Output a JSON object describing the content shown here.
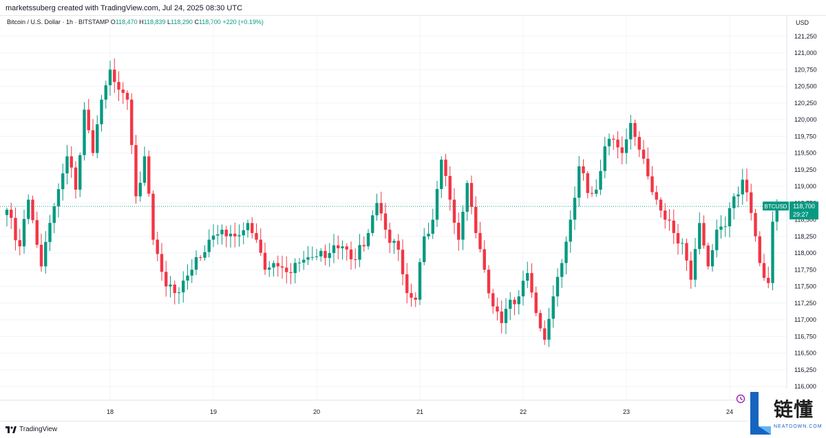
{
  "header": {
    "created_text": "marketssuberg created with TradingView.com, Jul 24, 2025 08:30 UTC"
  },
  "legend": {
    "symbol": "Bitcoin / U.S. Dollar · 1h · BITSTAMP",
    "o_label": "O",
    "o_value": "118,470",
    "h_label": "H",
    "h_value": "118,839",
    "l_label": "L",
    "l_value": "118,290",
    "c_label": "C",
    "c_value": "118,700",
    "change": "+220 (+0.19%)"
  },
  "footer": {
    "logo_text": "TradingView"
  },
  "watermark": {
    "cn": "链懂",
    "en": "NEATDOWN.COM"
  },
  "colors": {
    "up": "#089981",
    "down": "#f23645",
    "grid": "#f0f3fa",
    "axis_text": "#131722",
    "badge_bg": "#089981"
  },
  "chart_data": {
    "type": "candlestick",
    "title": "Bitcoin / U.S. Dollar · 1h · BITSTAMP",
    "currency_label": "USD",
    "ylim": [
      115750,
      121500
    ],
    "y_ticks": [
      116000,
      116250,
      116500,
      116750,
      117000,
      117250,
      117500,
      117750,
      118000,
      118250,
      118500,
      118750,
      119000,
      119250,
      119500,
      119750,
      120000,
      120250,
      120500,
      120750,
      121000,
      121250
    ],
    "y_tick_labels": [
      "116,000",
      "116,250",
      "116,500",
      "116,750",
      "117,000",
      "117,250",
      "117,500",
      "117,750",
      "118,000",
      "118,250",
      "118,500",
      "118,750",
      "119,000",
      "119,250",
      "119,500",
      "119,750",
      "120,000",
      "120,250",
      "120,500",
      "120,750",
      "121,000",
      "121,250"
    ],
    "x_ticks": [
      {
        "index": 24,
        "label": "18"
      },
      {
        "index": 48,
        "label": "19"
      },
      {
        "index": 72,
        "label": "20"
      },
      {
        "index": 96,
        "label": "21"
      },
      {
        "index": 120,
        "label": "22"
      },
      {
        "index": 144,
        "label": "23"
      },
      {
        "index": 168,
        "label": "24"
      }
    ],
    "last_price": {
      "symbol": "BTCUSD",
      "price": 118700,
      "price_label": "118,700",
      "countdown": "29:27"
    },
    "anchors": [
      {
        "i": 0,
        "c": 118650
      },
      {
        "i": 3,
        "c": 118100
      },
      {
        "i": 5,
        "c": 118800
      },
      {
        "i": 8,
        "c": 117800
      },
      {
        "i": 11,
        "c": 118700
      },
      {
        "i": 14,
        "c": 119450
      },
      {
        "i": 16,
        "c": 118950
      },
      {
        "i": 18,
        "c": 120150
      },
      {
        "i": 20,
        "c": 119500
      },
      {
        "i": 22,
        "c": 120300
      },
      {
        "i": 24,
        "c": 120750
      },
      {
        "i": 26,
        "c": 120450
      },
      {
        "i": 28,
        "c": 120300
      },
      {
        "i": 30,
        "c": 118850
      },
      {
        "i": 32,
        "c": 119450
      },
      {
        "i": 34,
        "c": 118200
      },
      {
        "i": 37,
        "c": 117500
      },
      {
        "i": 39,
        "c": 117400
      },
      {
        "i": 43,
        "c": 117750
      },
      {
        "i": 47,
        "c": 118200
      },
      {
        "i": 50,
        "c": 118350
      },
      {
        "i": 53,
        "c": 118250
      },
      {
        "i": 56,
        "c": 118450
      },
      {
        "i": 58,
        "c": 118200
      },
      {
        "i": 60,
        "c": 117750
      },
      {
        "i": 63,
        "c": 117800
      },
      {
        "i": 66,
        "c": 117700
      },
      {
        "i": 69,
        "c": 117900
      },
      {
        "i": 72,
        "c": 117950
      },
      {
        "i": 75,
        "c": 118000
      },
      {
        "i": 78,
        "c": 118100
      },
      {
        "i": 81,
        "c": 117900
      },
      {
        "i": 84,
        "c": 118300
      },
      {
        "i": 86,
        "c": 118750
      },
      {
        "i": 88,
        "c": 118350
      },
      {
        "i": 91,
        "c": 118050
      },
      {
        "i": 93,
        "c": 117400
      },
      {
        "i": 95,
        "c": 117300
      },
      {
        "i": 97,
        "c": 118250
      },
      {
        "i": 99,
        "c": 118500
      },
      {
        "i": 101,
        "c": 119400
      },
      {
        "i": 103,
        "c": 118800
      },
      {
        "i": 105,
        "c": 118200
      },
      {
        "i": 107,
        "c": 119050
      },
      {
        "i": 109,
        "c": 118300
      },
      {
        "i": 111,
        "c": 117750
      },
      {
        "i": 113,
        "c": 117200
      },
      {
        "i": 115,
        "c": 116950
      },
      {
        "i": 117,
        "c": 117300
      },
      {
        "i": 119,
        "c": 117350
      },
      {
        "i": 121,
        "c": 117700
      },
      {
        "i": 123,
        "c": 117100
      },
      {
        "i": 125,
        "c": 116700
      },
      {
        "i": 127,
        "c": 117350
      },
      {
        "i": 129,
        "c": 117850
      },
      {
        "i": 131,
        "c": 118500
      },
      {
        "i": 133,
        "c": 119300
      },
      {
        "i": 135,
        "c": 118900
      },
      {
        "i": 137,
        "c": 118950
      },
      {
        "i": 139,
        "c": 119600
      },
      {
        "i": 141,
        "c": 119700
      },
      {
        "i": 143,
        "c": 119500
      },
      {
        "i": 145,
        "c": 119950
      },
      {
        "i": 147,
        "c": 119550
      },
      {
        "i": 149,
        "c": 119150
      },
      {
        "i": 151,
        "c": 118800
      },
      {
        "i": 153,
        "c": 118500
      },
      {
        "i": 155,
        "c": 118300
      },
      {
        "i": 157,
        "c": 118150
      },
      {
        "i": 159,
        "c": 117600
      },
      {
        "i": 161,
        "c": 118450
      },
      {
        "i": 163,
        "c": 117800
      },
      {
        "i": 165,
        "c": 118350
      },
      {
        "i": 167,
        "c": 118400
      },
      {
        "i": 169,
        "c": 118850
      },
      {
        "i": 171,
        "c": 119100
      },
      {
        "i": 173,
        "c": 118600
      },
      {
        "i": 175,
        "c": 117850
      },
      {
        "i": 177,
        "c": 117550
      },
      {
        "i": 178,
        "c": 118470
      },
      {
        "i": 179,
        "c": 118700
      }
    ],
    "num_candles": 180
  }
}
